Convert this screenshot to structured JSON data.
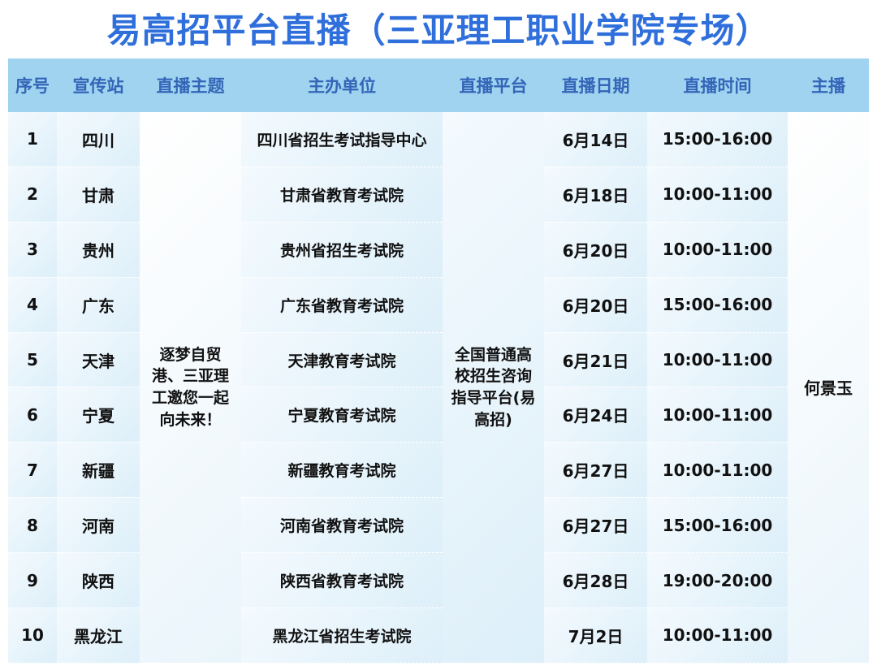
{
  "title": "易高招平台直播（三亚理工职业学院专场）",
  "headers": [
    "序号",
    "宣传站",
    "直播主题",
    "主办单位",
    "直播平台",
    "直播日期",
    "直播时间",
    "主播"
  ],
  "theme": "逐梦自贸港、三亚理工邀您一起向未来！",
  "platform": "全国普通高校招生咨询指导平台(易高招)",
  "host": "何景玉",
  "rows": [
    {
      "no": "1",
      "station": "四川",
      "org": "四川省招生考试指导中心",
      "date": "6月14日",
      "time": "15:00-16:00"
    },
    {
      "no": "2",
      "station": "甘肃",
      "org": "甘肃省教育考试院",
      "date": "6月18日",
      "time": "10:00-11:00"
    },
    {
      "no": "3",
      "station": "贵州",
      "org": "贵州省招生考试院",
      "date": "6月20日",
      "time": "10:00-11:00"
    },
    {
      "no": "4",
      "station": "广东",
      "org": "广东省教育考试院",
      "date": "6月20日",
      "time": "15:00-16:00"
    },
    {
      "no": "5",
      "station": "天津",
      "org": "天津教育考试院",
      "date": "6月21日",
      "time": "10:00-11:00"
    },
    {
      "no": "6",
      "station": "宁夏",
      "org": "宁夏教育考试院",
      "date": "6月24日",
      "time": "10:00-11:00"
    },
    {
      "no": "7",
      "station": "新疆",
      "org": "新疆教育考试院",
      "date": "6月27日",
      "time": "10:00-11:00"
    },
    {
      "no": "8",
      "station": "河南",
      "org": "河南省教育考试院",
      "date": "6月27日",
      "time": "15:00-16:00"
    },
    {
      "no": "9",
      "station": "陕西",
      "org": "陕西省教育考试院",
      "date": "6月28日",
      "time": "19:00-20:00"
    },
    {
      "no": "10",
      "station": "黑龙江",
      "org": "黑龙江省招生考试院",
      "date": "7月2日",
      "time": "10:00-11:00"
    }
  ]
}
